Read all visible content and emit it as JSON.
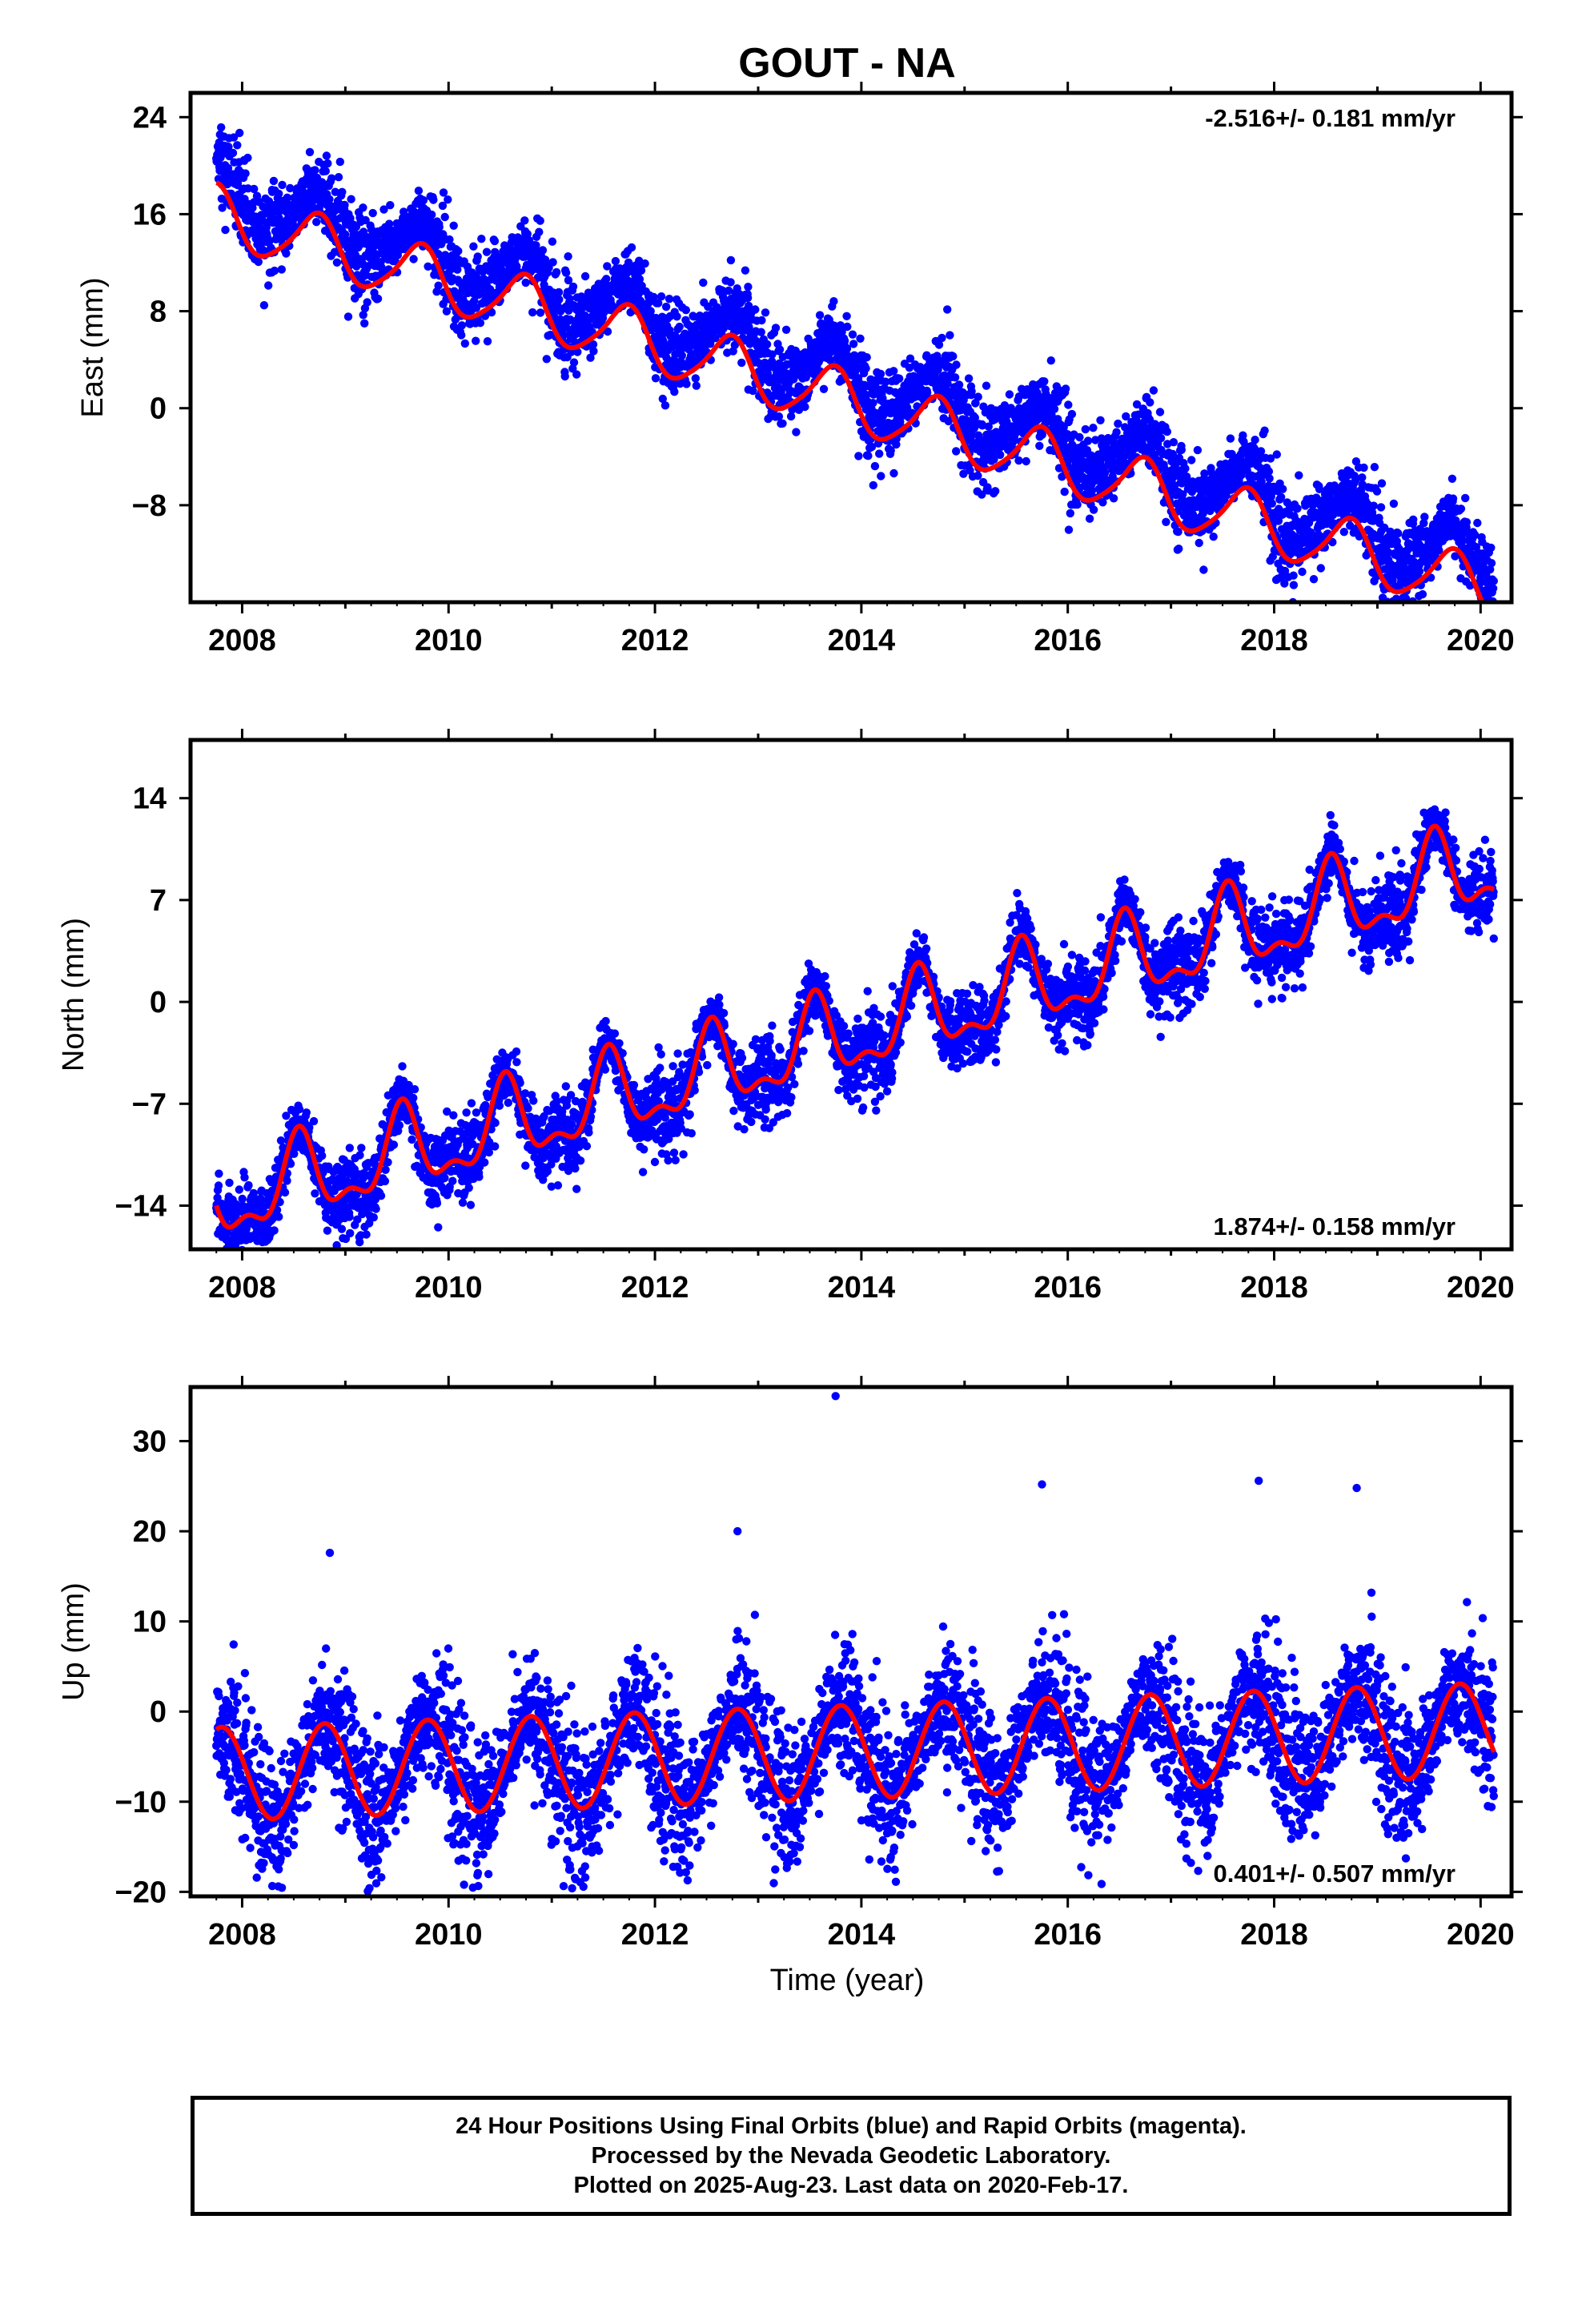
{
  "title": "GOUT - NA",
  "xlabel": "Time (year)",
  "footer": {
    "line1": "24 Hour Positions Using Final Orbits (blue) and Rapid Orbits (magenta).",
    "line2": "Processed by the Nevada Geodetic Laboratory.",
    "line3": "Plotted on 2025-Aug-23. Last data on 2020-Feb-17."
  },
  "colors": {
    "points": "#0000ff",
    "fit": "#ff0000",
    "frame": "#000000"
  },
  "chart_data": [
    {
      "type": "scatter",
      "ylabel": "East (mm)",
      "rate": "-2.516+/- 0.181 mm/yr",
      "rate_position": "top-right",
      "xlim": [
        2007.5,
        2020.3
      ],
      "ylim": [
        -16,
        26
      ],
      "xticks": [
        2008,
        2010,
        2012,
        2014,
        2016,
        2018,
        2020
      ],
      "yticks": [
        24,
        16,
        8,
        0,
        -8
      ],
      "fit": {
        "t0": 2007.75,
        "y0": 18.6,
        "rate": -2.516,
        "annual_amp": 2.4,
        "annual_phase_year": 0.72,
        "semiannual_amp": 0.4,
        "semiannual_phase_year": 0.3
      },
      "observations": {
        "start": 2007.75,
        "end": 2020.13,
        "offset_above_fit": 2.0,
        "scatter": 1.6,
        "seasonal_extra": 0.5
      },
      "series": [
        {
          "name": "24 Hour Positions Using Final Orbits (blue)",
          "color": "#0000ff",
          "samples": [
            [
              2007.75,
              20.0
            ],
            [
              2008.5,
              19.3
            ],
            [
              2009.0,
              15.9
            ],
            [
              2010.0,
              13.3
            ],
            [
              2011.0,
              10.7
            ],
            [
              2012.0,
              6.4
            ],
            [
              2013.0,
              4.0
            ],
            [
              2014.0,
              1.6
            ],
            [
              2015.0,
              -1.2
            ],
            [
              2016.0,
              -3.0
            ],
            [
              2017.0,
              -6.0
            ],
            [
              2018.0,
              -8.8
            ],
            [
              2019.0,
              -10.0
            ],
            [
              2020.1,
              -12.8
            ]
          ]
        },
        {
          "name": "fit",
          "color": "#ff0000",
          "samples": [
            [
              2007.75,
              18.6
            ],
            [
              2008.3,
              13.7
            ],
            [
              2008.75,
              16.3
            ],
            [
              2010.0,
              10.9
            ],
            [
              2012.0,
              5.9
            ],
            [
              2014.0,
              0.7
            ],
            [
              2016.0,
              -4.3
            ],
            [
              2018.0,
              -9.4
            ],
            [
              2019.4,
              -14.0
            ],
            [
              2020.1,
              -13.8
            ]
          ]
        }
      ]
    },
    {
      "type": "scatter",
      "ylabel": "North (mm)",
      "rate": "1.874+/- 0.158 mm/yr",
      "rate_position": "bottom-right",
      "xlim": [
        2007.5,
        2020.3
      ],
      "ylim": [
        -17,
        18
      ],
      "xticks": [
        2008,
        2010,
        2012,
        2014,
        2016,
        2018,
        2020
      ],
      "yticks": [
        14,
        7,
        0,
        -7,
        -14
      ],
      "fit": {
        "t0": 2007.75,
        "y0": -14.0,
        "rate": 1.874,
        "annual_amp": 2.6,
        "annual_phase_year": 0.55,
        "semiannual_amp": 1.2,
        "semiannual_phase_year": 0.55
      },
      "observations": {
        "start": 2007.75,
        "end": 2020.13,
        "offset_above_fit": 0.0,
        "scatter": 1.2,
        "seasonal_extra": 0.3
      },
      "series": [
        {
          "name": "24 Hour Positions Using Final Orbits (blue)",
          "color": "#0000ff",
          "samples": [
            [
              2007.75,
              -11.8
            ],
            [
              2008.6,
              -5.5
            ],
            [
              2009.5,
              -3.5
            ],
            [
              2010.5,
              -1.8
            ],
            [
              2011.5,
              0.4
            ],
            [
              2012.5,
              2.4
            ],
            [
              2013.5,
              3.9
            ],
            [
              2014.5,
              5.8
            ],
            [
              2015.5,
              7.8
            ],
            [
              2016.5,
              9.6
            ],
            [
              2017.5,
              11.3
            ],
            [
              2018.5,
              13.1
            ],
            [
              2019.5,
              15.2
            ],
            [
              2020.1,
              10.4
            ]
          ]
        },
        {
          "name": "fit",
          "color": "#ff0000",
          "samples": [
            [
              2007.8,
              -14.2
            ],
            [
              2008.6,
              -5.5
            ],
            [
              2009.5,
              -3.5
            ],
            [
              2010.5,
              -1.8
            ],
            [
              2011.5,
              0.4
            ],
            [
              2012.5,
              2.4
            ],
            [
              2013.5,
              3.9
            ],
            [
              2014.5,
              5.8
            ],
            [
              2015.5,
              7.8
            ],
            [
              2016.5,
              9.6
            ],
            [
              2017.5,
              11.3
            ],
            [
              2018.5,
              13.1
            ],
            [
              2019.5,
              15.2
            ],
            [
              2020.1,
              10.4
            ]
          ]
        }
      ]
    },
    {
      "type": "scatter",
      "ylabel": "Up (mm)",
      "rate": "0.401+/- 0.507 mm/yr",
      "rate_position": "bottom-right",
      "xlim": [
        2007.5,
        2020.3
      ],
      "ylim": [
        -20.5,
        36
      ],
      "xticks": [
        2008,
        2010,
        2012,
        2014,
        2016,
        2018,
        2020
      ],
      "yticks": [
        30,
        20,
        10,
        0,
        -10,
        -20
      ],
      "fit": {
        "t0": 2007.75,
        "y0": -2.0,
        "rate": 0.401,
        "annual_amp": 5.2,
        "annual_phase_year": 0.8,
        "semiannual_amp": 0.0,
        "semiannual_phase_year": 0.0
      },
      "observations": {
        "start": 2007.75,
        "end": 2020.13,
        "offset_above_fit": 0.0,
        "scatter": 3.6,
        "seasonal_extra": 1.2
      },
      "series": [
        {
          "name": "24 Hour Positions Using Final Orbits (blue)",
          "color": "#0000ff",
          "samples": [
            [
              2007.75,
              2.0
            ],
            [
              2008.3,
              -7.5
            ],
            [
              2008.8,
              3.2
            ],
            [
              2010.8,
              4.0
            ],
            [
              2012.8,
              5.0
            ],
            [
              2014.8,
              5.8
            ],
            [
              2016.8,
              6.8
            ],
            [
              2018.8,
              7.4
            ],
            [
              2019.8,
              7.8
            ],
            [
              2020.1,
              1.0
            ]
          ],
          "outliers": [
            [
              2013.75,
              35.0
            ],
            [
              2017.85,
              25.6
            ],
            [
              2015.75,
              25.2
            ],
            [
              2018.8,
              24.8
            ],
            [
              2012.8,
              20.0
            ],
            [
              2008.85,
              17.6
            ],
            [
              2008.35,
              -19.4
            ],
            [
              2010.15,
              -19.2
            ],
            [
              2017.15,
              -16.3
            ],
            [
              2019.3,
              -13.5
            ]
          ]
        },
        {
          "name": "fit",
          "color": "#ff0000",
          "samples": [
            [
              2007.75,
              2.8
            ],
            [
              2008.3,
              -7.4
            ],
            [
              2008.8,
              3.3
            ],
            [
              2009.3,
              -7.2
            ],
            [
              2012.8,
              5.0
            ],
            [
              2016.3,
              -4.2
            ],
            [
              2018.8,
              7.4
            ],
            [
              2019.3,
              -3.0
            ],
            [
              2019.8,
              7.8
            ],
            [
              2020.13,
              0.6
            ]
          ]
        }
      ]
    }
  ]
}
